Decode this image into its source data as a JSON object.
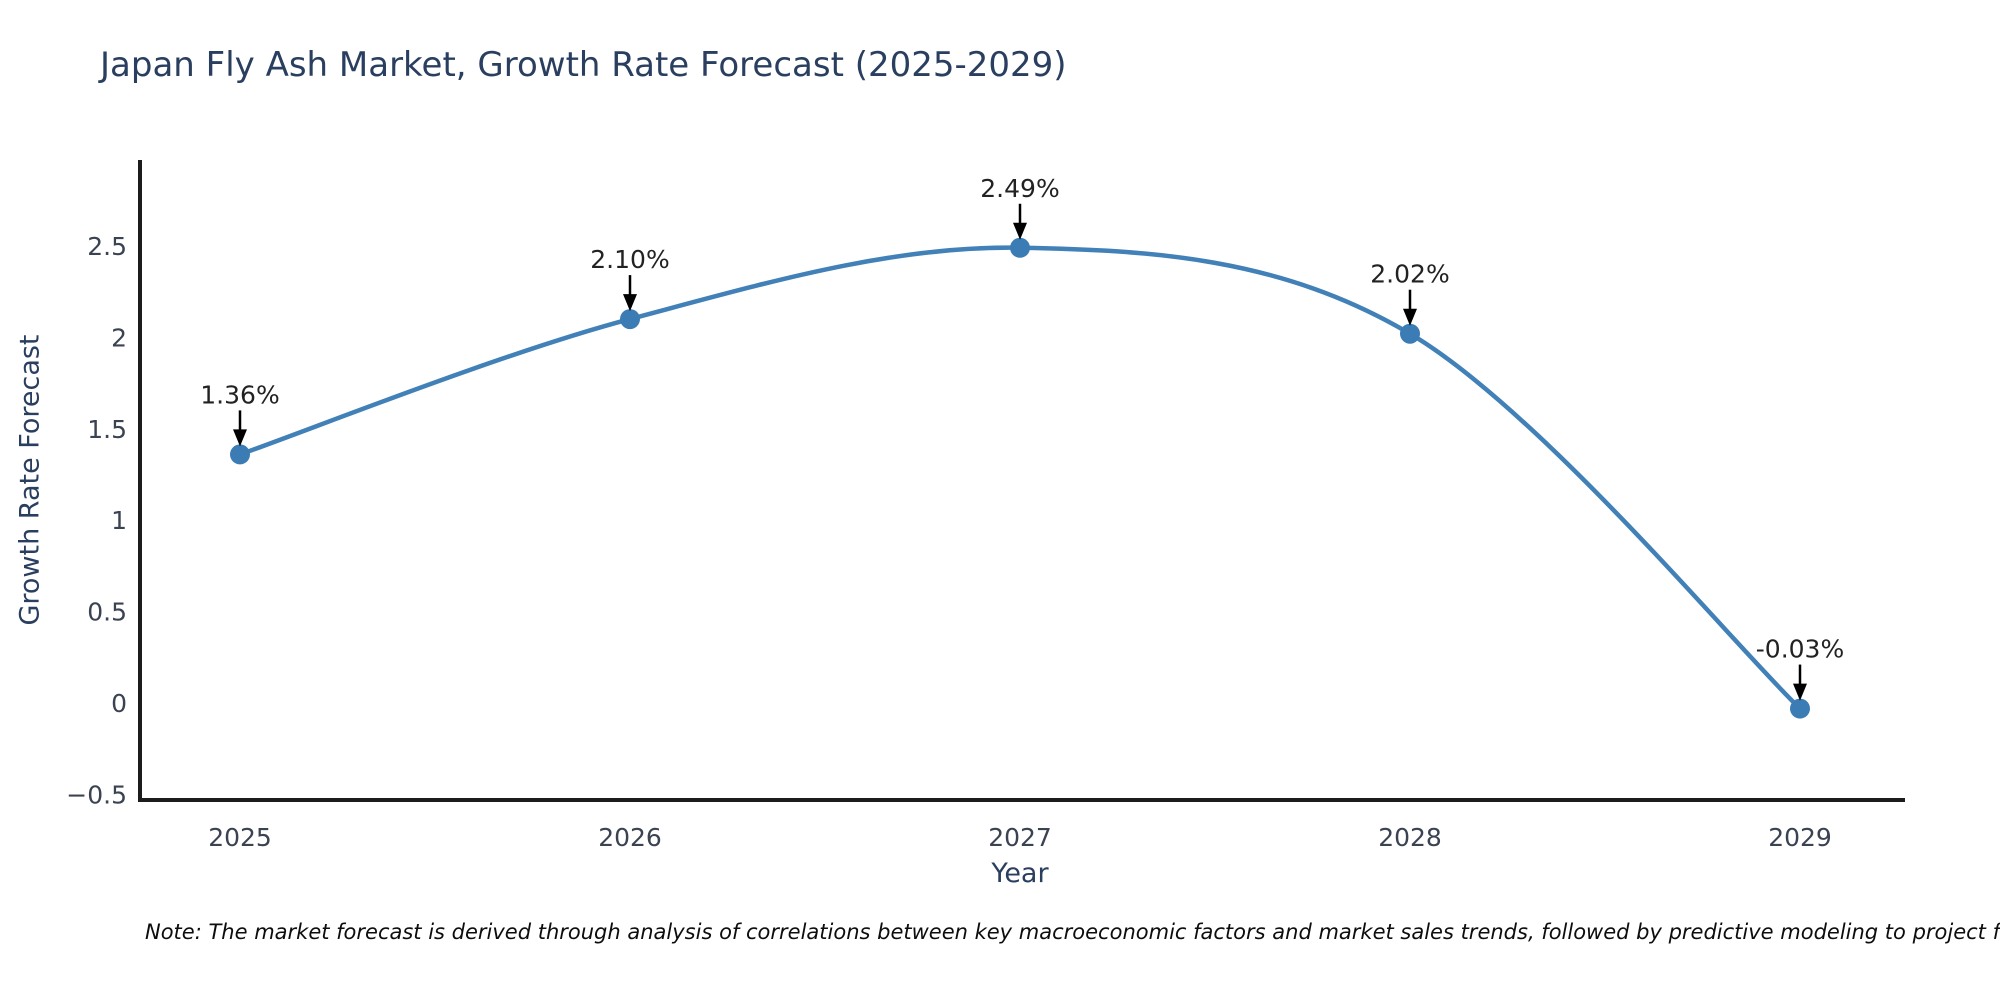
{
  "note": "Note: The market forecast is derived through analysis of correlations between key macroeconomic factors and market sales trends, followed by predictive modeling to project future sa",
  "chart_data": {
    "type": "line",
    "title": "Japan Fly Ash Market, Growth Rate Forecast (2025-2029)",
    "xlabel": "Year",
    "ylabel": "Growth Rate Forecast",
    "categories": [
      2025,
      2026,
      2027,
      2028,
      2029
    ],
    "series": [
      {
        "name": "Growth Rate Forecast",
        "values": [
          1.36,
          2.1,
          2.49,
          2.02,
          -0.03
        ]
      }
    ],
    "point_labels": [
      "1.36%",
      "2.10%",
      "2.49%",
      "2.02%",
      "-0.03%"
    ],
    "ytick_labels": [
      "−0.5",
      "0",
      "0.5",
      "1",
      "1.5",
      "2",
      "2.5"
    ],
    "ytick_values": [
      -0.5,
      0,
      0.5,
      1,
      1.5,
      2,
      2.5
    ],
    "ylim": [
      -0.53,
      2.97
    ],
    "grid": false,
    "legend": "none",
    "curve": "spline",
    "colors": {
      "line": "#4181b8",
      "marker": "#3c7cb4",
      "axis": "#1c1c1c",
      "tick_text": "#3b4252",
      "title_text": "#2a3f5f",
      "annotation_text": "#222222",
      "arrow": "#000000"
    }
  }
}
